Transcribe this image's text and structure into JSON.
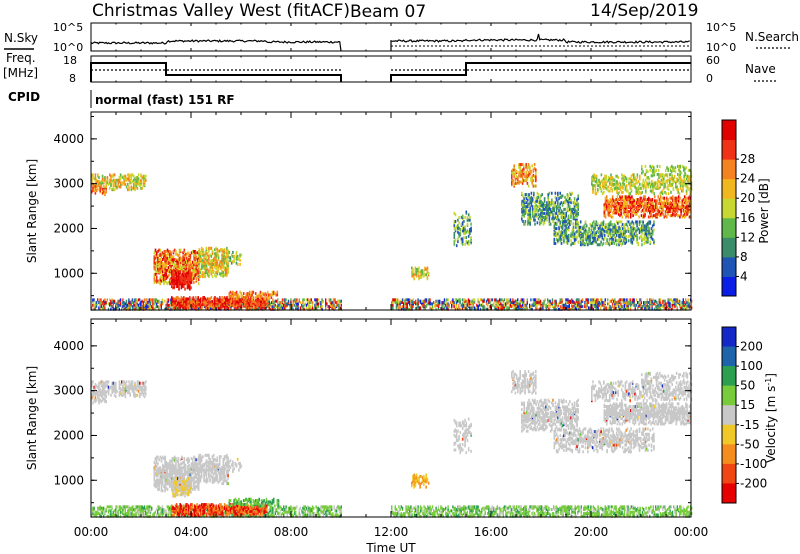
{
  "header": {
    "station": "Christmas Valley West (fitACF)",
    "beam": "Beam 07",
    "date": "14/Sep/2019"
  },
  "top_panels": {
    "nsky_label": "N.Sky",
    "nsky_ticks": [
      "10^5",
      "10^0"
    ],
    "nsearch_label": "N.Search",
    "nsearch_ticks": [
      "10^5",
      "10^0"
    ],
    "freq_label_1": "Freq.",
    "freq_label_2": "[MHz]",
    "freq_ticks": [
      "18",
      "8"
    ],
    "nave_label": "Nave",
    "nave_ticks": [
      "60",
      "0"
    ],
    "cpid_label": "CPID",
    "cpid_text": "normal (fast) 151 RF"
  },
  "time_axis": {
    "label": "Time UT",
    "ticks": [
      "00:00",
      "04:00",
      "08:00",
      "12:00",
      "16:00",
      "20:00",
      "00:00"
    ]
  },
  "chart_data": [
    {
      "type": "heatmap",
      "name": "power",
      "ylabel": "Slant Range [km]",
      "yticks": [
        "1000",
        "2000",
        "3000",
        "4000"
      ],
      "xlim_hours": [
        0,
        24
      ],
      "ylim_km": [
        180,
        4600
      ],
      "colorbar_label": "Power [dB]",
      "colorbar_ticks": [
        "4",
        "8",
        "12",
        "16",
        "20",
        "24",
        "28"
      ],
      "colors": [
        "#0a1ee6",
        "#1f55b5",
        "#3a8c6a",
        "#60b84a",
        "#c8d832",
        "#f0b81e",
        "#f58220",
        "#f03218",
        "#e00000"
      ],
      "data_gap_hours": [
        10.0,
        12.0
      ]
    },
    {
      "type": "heatmap",
      "name": "velocity",
      "ylabel": "Slant Range [km]",
      "yticks": [
        "1000",
        "2000",
        "3000",
        "4000"
      ],
      "xlim_hours": [
        0,
        24
      ],
      "ylim_km": [
        180,
        4600
      ],
      "colorbar_label": "Velocity [m s",
      "colorbar_unit_sup": "-1",
      "colorbar_unit_end": "]",
      "colorbar_ticks": [
        "200",
        "100",
        "50",
        "15",
        "-15",
        "-50",
        "-100",
        "-200"
      ],
      "colors": [
        "#1428c8",
        "#1e64aa",
        "#2ca050",
        "#78cc3c",
        "#c8c8c8",
        "#f0c828",
        "#f58c1e",
        "#f04614",
        "#e60000"
      ],
      "data_gap_hours": [
        10.0,
        12.0
      ]
    }
  ]
}
